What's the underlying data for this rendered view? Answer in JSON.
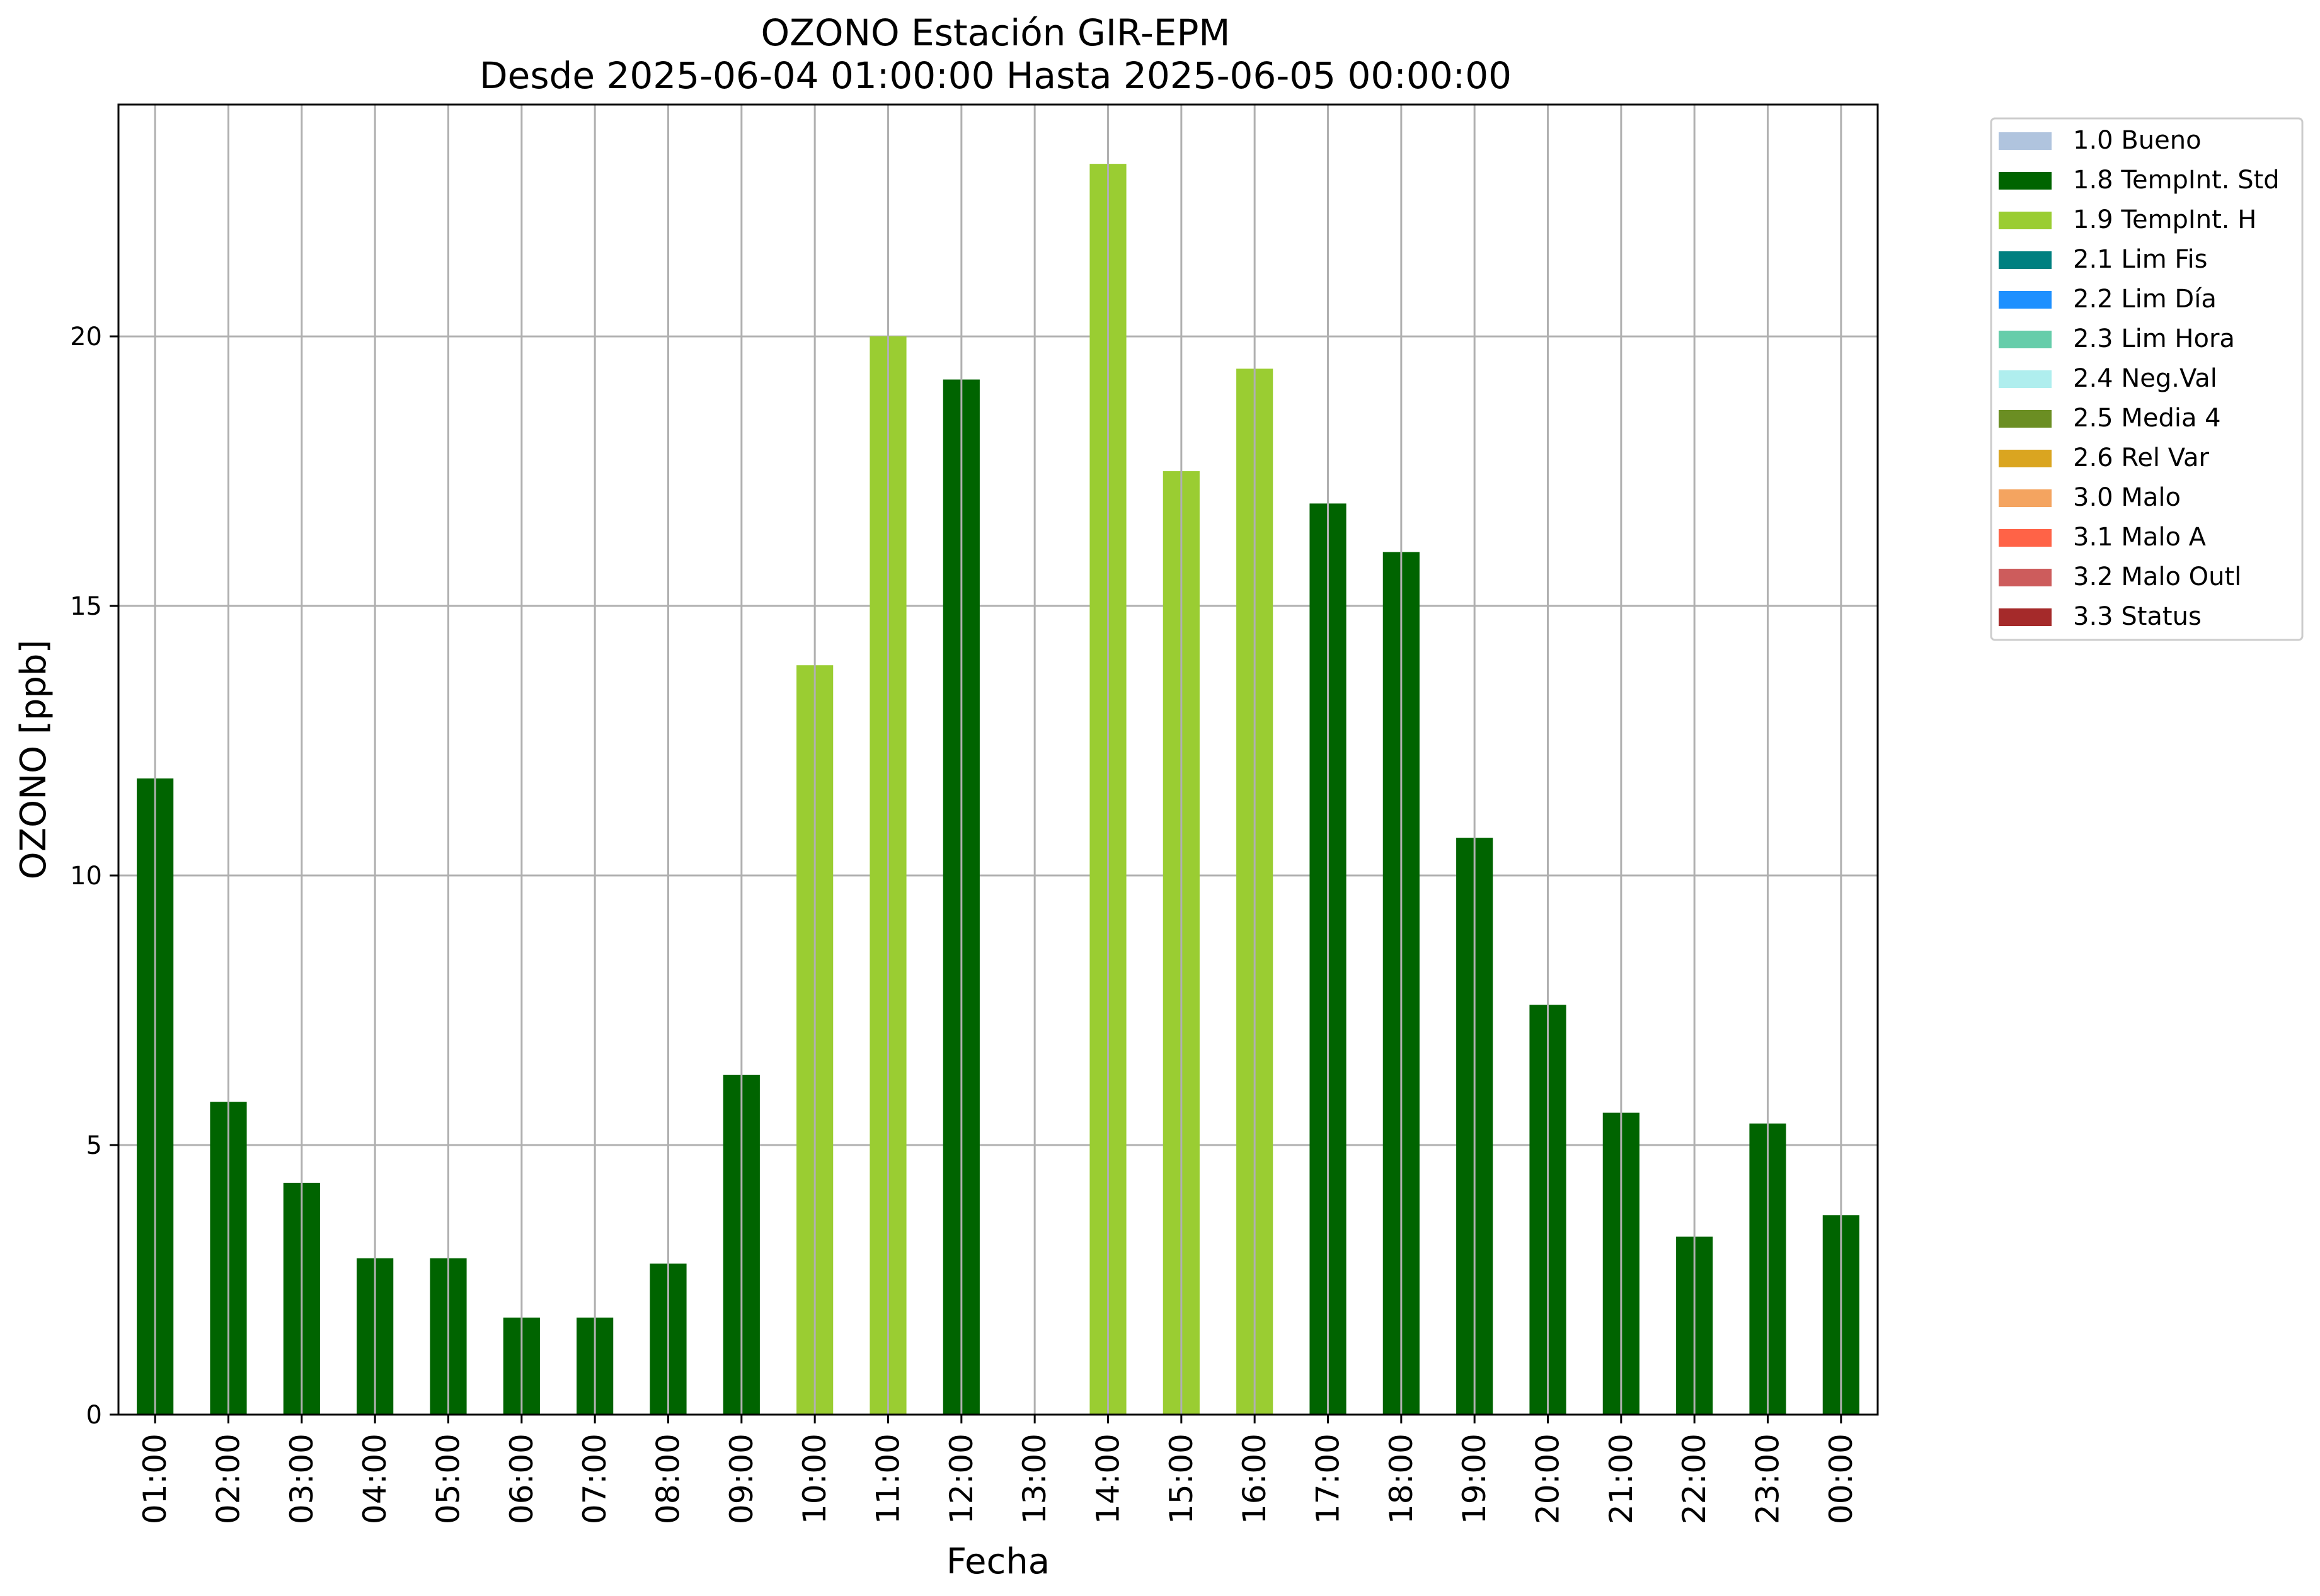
{
  "chart_data": {
    "type": "bar",
    "title": "OZONO Estación GIR-EPM",
    "subtitle": "Desde 2025-06-04 01:00:00 Hasta 2025-06-05 00:00:00",
    "xlabel": "Fecha",
    "ylabel": "OZONO [ppb]",
    "ylim": [
      0,
      24.3
    ],
    "yticks": [
      0,
      5,
      10,
      15,
      20
    ],
    "grid": true,
    "legend_position": "outside top-right",
    "categories": [
      "01:00",
      "02:00",
      "03:00",
      "04:00",
      "05:00",
      "06:00",
      "07:00",
      "08:00",
      "09:00",
      "10:00",
      "11:00",
      "12:00",
      "13:00",
      "14:00",
      "15:00",
      "16:00",
      "17:00",
      "18:00",
      "19:00",
      "20:00",
      "21:00",
      "22:00",
      "23:00",
      "00:00"
    ],
    "values": [
      11.8,
      5.8,
      4.3,
      2.9,
      2.9,
      1.8,
      1.8,
      2.8,
      6.3,
      13.9,
      20.0,
      19.2,
      null,
      23.2,
      17.5,
      19.4,
      16.9,
      16.0,
      10.7,
      7.6,
      5.6,
      3.3,
      5.4,
      3.7
    ],
    "flags": [
      "1.8",
      "1.8",
      "1.8",
      "1.8",
      "1.8",
      "1.8",
      "1.8",
      "1.8",
      "1.8",
      "1.9",
      "1.9",
      "1.8",
      null,
      "1.9",
      "1.9",
      "1.9",
      "1.8",
      "1.8",
      "1.8",
      "1.8",
      "1.8",
      "1.8",
      "1.8",
      "1.8"
    ],
    "legend": [
      {
        "code": "1.0",
        "label": "1.0 Bueno",
        "color": "#b0c4de"
      },
      {
        "code": "1.8",
        "label": "1.8 TempInt. Std",
        "color": "#006400"
      },
      {
        "code": "1.9",
        "label": "1.9 TempInt. H",
        "color": "#9acd32"
      },
      {
        "code": "2.1",
        "label": "2.1 Lim Fis",
        "color": "#008080"
      },
      {
        "code": "2.2",
        "label": "2.2 Lim Día",
        "color": "#1e90ff"
      },
      {
        "code": "2.3",
        "label": "2.3 Lim Hora",
        "color": "#66cdaa"
      },
      {
        "code": "2.4",
        "label": "2.4 Neg.Val",
        "color": "#afeeee"
      },
      {
        "code": "2.5",
        "label": "2.5 Media 4",
        "color": "#6b8e23"
      },
      {
        "code": "2.6",
        "label": "2.6 Rel Var",
        "color": "#daa520"
      },
      {
        "code": "3.0",
        "label": "3.0 Malo",
        "color": "#f4a460"
      },
      {
        "code": "3.1",
        "label": "3.1 Malo A",
        "color": "#ff6347"
      },
      {
        "code": "3.2",
        "label": "3.2 Malo Outl",
        "color": "#cd5c5c"
      },
      {
        "code": "3.3",
        "label": "3.3 Status",
        "color": "#a52a2a"
      }
    ]
  }
}
